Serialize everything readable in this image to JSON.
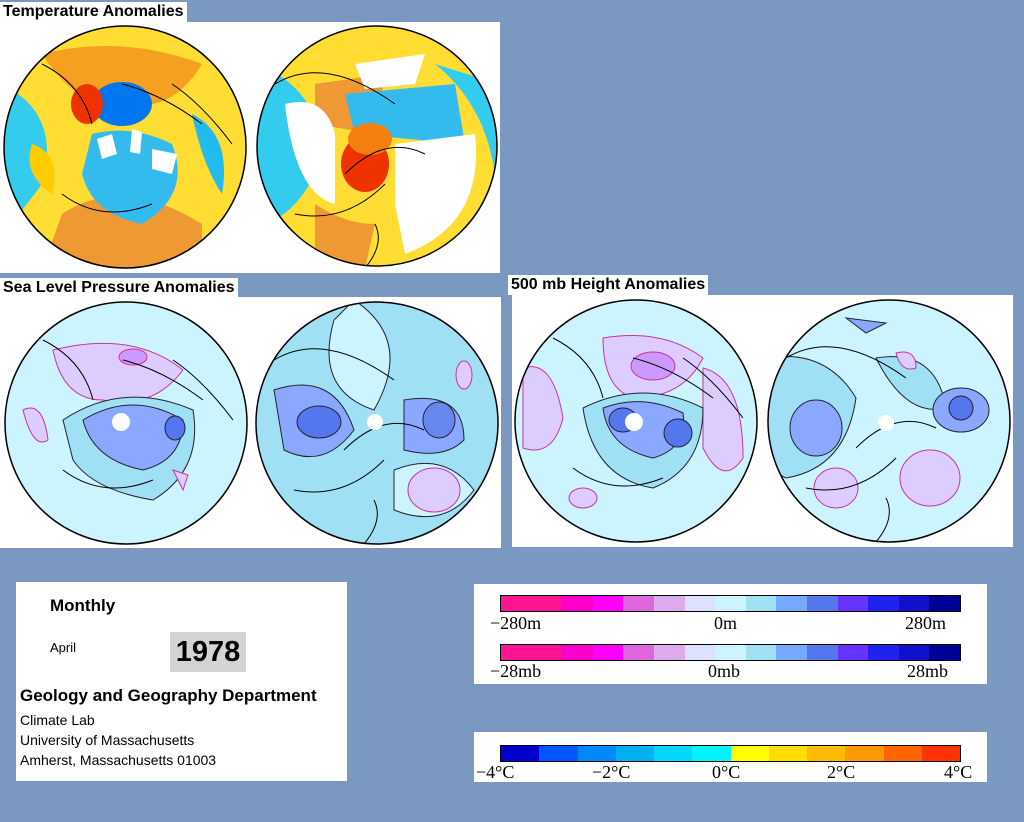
{
  "sections": {
    "temperature": "Temperature Anomalies",
    "slp": "Sea Level Pressure Anomalies",
    "height500": "500 mb Height Anomalies"
  },
  "info": {
    "mode": "Monthly",
    "month": "April",
    "year": "1978",
    "department": "Geology and Geography Department",
    "lines": [
      "Climate Lab",
      "University of Massachusetts",
      "Amherst, Massachusetts 01003"
    ]
  },
  "legends": {
    "height": {
      "min": "−280m",
      "mid": "0m",
      "max": "280m"
    },
    "pressure": {
      "min": "−28mb",
      "mid": "0mb",
      "max": "28mb"
    },
    "temperature": {
      "labels": [
        "−4°C",
        "−2°C",
        "0°C",
        "2°C",
        "4°C"
      ]
    }
  },
  "colors": {
    "background": "#7b98c0",
    "anomaly_scale": [
      "#ff1493",
      "#ff1493",
      "#ff00cc",
      "#ff00ff",
      "#dd66dd",
      "#ddaaee",
      "#dde0ff",
      "#ccf4ff",
      "#a0e0f4",
      "#77aaff",
      "#5577ee",
      "#6633ff",
      "#2222ee",
      "#1111cc",
      "#000099"
    ],
    "temperature_scale": [
      "#0000cc",
      "#0055ff",
      "#0088ff",
      "#00b0f0",
      "#00d8ff",
      "#00f4ff",
      "#ffff00",
      "#ffdd00",
      "#ffbb00",
      "#ff9900",
      "#ff6600",
      "#ff3300"
    ]
  }
}
